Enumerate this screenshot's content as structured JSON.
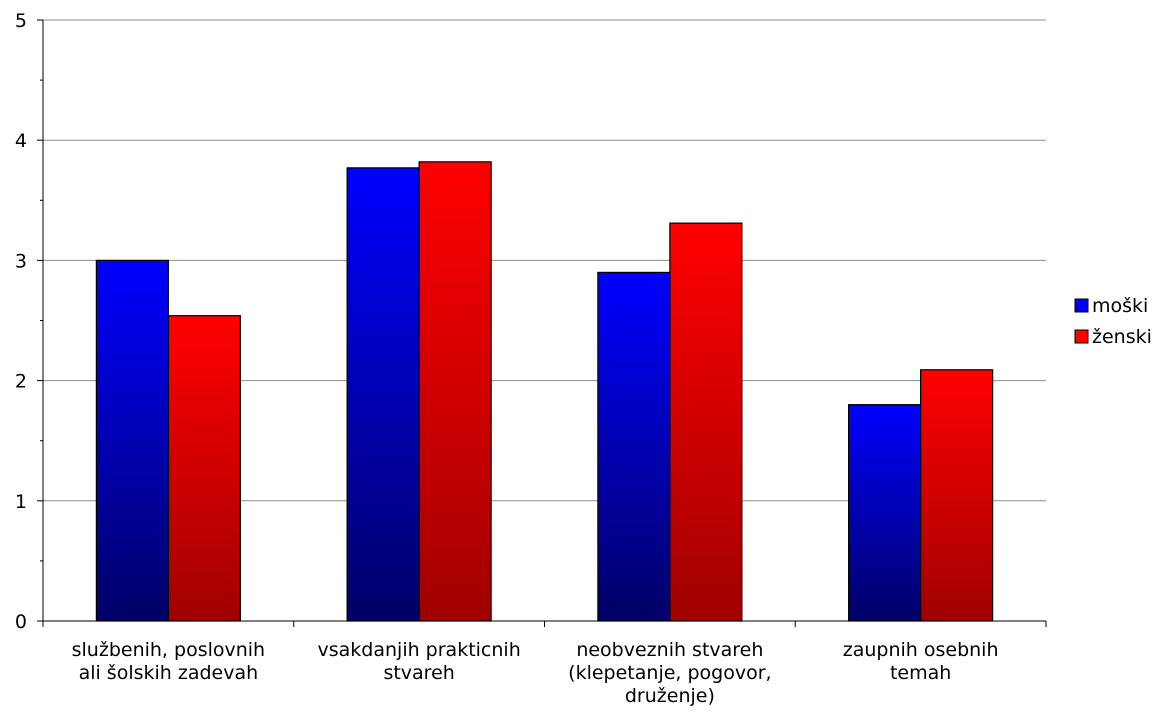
{
  "chart_data": {
    "type": "bar",
    "categories": [
      [
        "službenih, poslovnih",
        "ali šolskih zadevah"
      ],
      [
        "vsakdanjih prakticnih",
        "stvareh"
      ],
      [
        "neobveznih stvareh",
        "(klepetanje, pogovor,",
        "druženje)"
      ],
      [
        "zaupnih osebnih",
        "temah"
      ]
    ],
    "series": [
      {
        "name": "moški",
        "values": [
          3.0,
          3.77,
          2.9,
          1.8
        ],
        "color": "#0000ff",
        "color_dark": "#000066"
      },
      {
        "name": "ženski",
        "values": [
          2.54,
          3.82,
          3.31,
          2.09
        ],
        "color": "#ff0000",
        "color_dark": "#a00000"
      }
    ],
    "title": "",
    "xlabel": "",
    "ylabel": "",
    "ylim": [
      0,
      5
    ],
    "yticks": [
      "0",
      "1",
      "2",
      "3",
      "4",
      "5"
    ],
    "grid": true,
    "legend_position": "right"
  }
}
